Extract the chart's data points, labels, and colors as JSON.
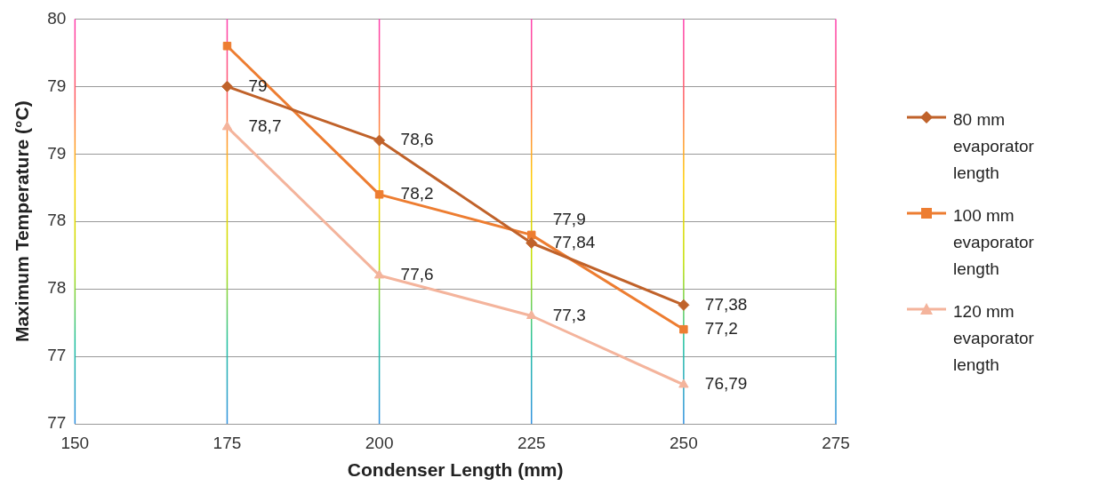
{
  "chart_data": {
    "type": "line",
    "xlabel": "Condenser Length (mm)",
    "ylabel": "Maximum Temperature (°C)",
    "x": [
      175,
      200,
      225,
      250
    ],
    "xlim": [
      150,
      275
    ],
    "xticks": [
      150,
      175,
      200,
      225,
      250,
      275
    ],
    "ylim": [
      76.5,
      79.5
    ],
    "yticks": [
      {
        "value": 76.5,
        "label": "77"
      },
      {
        "value": 77,
        "label": "77"
      },
      {
        "value": 77.5,
        "label": "78"
      },
      {
        "value": 78,
        "label": "78"
      },
      {
        "value": 78.5,
        "label": "79"
      },
      {
        "value": 79,
        "label": "79"
      },
      {
        "value": 79.5,
        "label": "80"
      }
    ],
    "grid": true,
    "legend": "right",
    "series": [
      {
        "name": "80 mm evaporator length",
        "color": "#c0622a",
        "marker": "diamond",
        "values": [
          79,
          78.6,
          77.84,
          77.38
        ],
        "value_labels": [
          "79",
          "78,6",
          "77,84",
          "77,38"
        ]
      },
      {
        "name": "100 mm evaporator length",
        "color": "#ed7d31",
        "marker": "square",
        "values": [
          79.3,
          78.2,
          77.9,
          77.2
        ],
        "value_labels": [
          null,
          "78,2",
          "77,9",
          "77,2"
        ]
      },
      {
        "name": "120 mm evaporator length",
        "color": "#f4b49c",
        "marker": "triangle",
        "values": [
          78.7,
          77.6,
          77.3,
          76.79
        ],
        "value_labels": [
          "78,7",
          "77,6",
          "77,3",
          "76,79"
        ]
      }
    ]
  }
}
